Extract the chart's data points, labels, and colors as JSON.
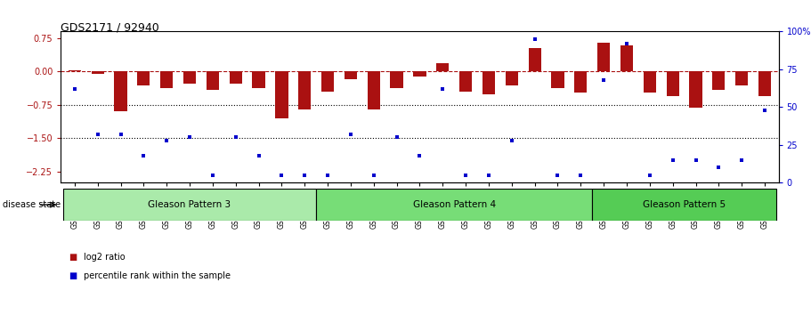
{
  "title": "GDS2171 / 92940",
  "samples": [
    "GSM115759",
    "GSM115764",
    "GSM115765",
    "GSM115768",
    "GSM115770",
    "GSM115775",
    "GSM115783",
    "GSM115784",
    "GSM115785",
    "GSM115786",
    "GSM115789",
    "GSM115760",
    "GSM115761",
    "GSM115762",
    "GSM115766",
    "GSM115767",
    "GSM115771",
    "GSM115773",
    "GSM115776",
    "GSM115777",
    "GSM115778",
    "GSM115779",
    "GSM115790",
    "GSM115763",
    "GSM115772",
    "GSM115774",
    "GSM115780",
    "GSM115781",
    "GSM115782",
    "GSM115787",
    "GSM115788"
  ],
  "log2_ratio": [
    0.03,
    -0.06,
    -0.9,
    -0.32,
    -0.38,
    -0.28,
    -0.42,
    -0.28,
    -0.38,
    -1.05,
    -0.85,
    -0.45,
    -0.18,
    -0.85,
    -0.38,
    -0.12,
    0.18,
    -0.45,
    -0.52,
    -0.32,
    0.52,
    -0.38,
    -0.48,
    0.65,
    0.58,
    -0.48,
    -0.55,
    -0.82,
    -0.42,
    -0.32,
    -0.55
  ],
  "percentile": [
    62,
    32,
    32,
    18,
    28,
    30,
    5,
    30,
    18,
    5,
    5,
    5,
    32,
    5,
    30,
    18,
    62,
    5,
    5,
    28,
    95,
    5,
    5,
    68,
    92,
    5,
    15,
    15,
    10,
    15,
    48
  ],
  "groups": [
    {
      "label": "Gleason Pattern 3",
      "start": 0,
      "end": 10,
      "color": "#AAEAAA"
    },
    {
      "label": "Gleason Pattern 4",
      "start": 11,
      "end": 22,
      "color": "#77DD77"
    },
    {
      "label": "Gleason Pattern 5",
      "start": 23,
      "end": 30,
      "color": "#55CC55"
    }
  ],
  "ylim_left": [
    -2.5,
    0.9
  ],
  "ylim_right": [
    0,
    100
  ],
  "yticks_left": [
    0.75,
    0.0,
    -0.75,
    -1.5,
    -2.25
  ],
  "yticks_right": [
    100,
    75,
    50,
    25,
    0
  ],
  "bar_color": "#AA1111",
  "dot_color": "#0000CC",
  "bg_color": "#FFFFFF",
  "disease_state_label": "disease state",
  "legend_items": [
    "log2 ratio",
    "percentile rank within the sample"
  ]
}
